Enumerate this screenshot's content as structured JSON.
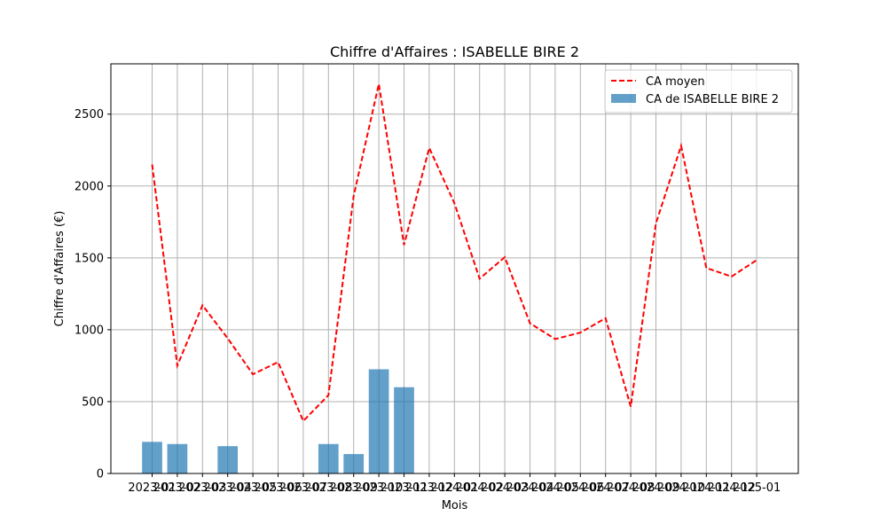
{
  "chart_data": {
    "type": "bar",
    "title": "Chiffre d'Affaires : ISABELLE BIRE 2",
    "xlabel": "Mois",
    "ylabel": "Chiffre d'Affaires (€)",
    "ylim": [
      0,
      2850
    ],
    "yticks": [
      0,
      500,
      1000,
      1500,
      2000,
      2500
    ],
    "grid": true,
    "legend_position": "top-right",
    "categories": [
      "2023-01",
      "2023-02",
      "2023-03",
      "2023-04",
      "2023-05",
      "2023-06",
      "2023-07",
      "2023-08",
      "2023-09",
      "2023-10",
      "2023-11",
      "2023-12",
      "2024-01",
      "2024-02",
      "2024-03",
      "2024-04",
      "2024-05",
      "2024-06",
      "2024-07",
      "2024-08",
      "2024-09",
      "2024-10",
      "2024-11",
      "2024-12",
      "2025-01"
    ],
    "series": [
      {
        "name": "CA moyen",
        "kind": "line",
        "style": "dashed",
        "color": "#ff0000",
        "values": [
          2150,
          750,
          1170,
          940,
          690,
          775,
          365,
          545,
          1930,
          2710,
          1590,
          2265,
          1880,
          1355,
          1505,
          1045,
          935,
          980,
          1080,
          465,
          1740,
          2280,
          1430,
          1370,
          1485
        ]
      },
      {
        "name": "CA de ISABELLE BIRE 2",
        "kind": "bar",
        "color": "#1f77b4",
        "opacity": 0.7,
        "values": [
          220,
          205,
          null,
          190,
          null,
          null,
          null,
          205,
          135,
          725,
          600,
          null,
          null,
          null,
          null,
          null,
          null,
          null,
          null,
          null,
          null,
          null,
          null,
          null,
          null
        ]
      }
    ]
  }
}
